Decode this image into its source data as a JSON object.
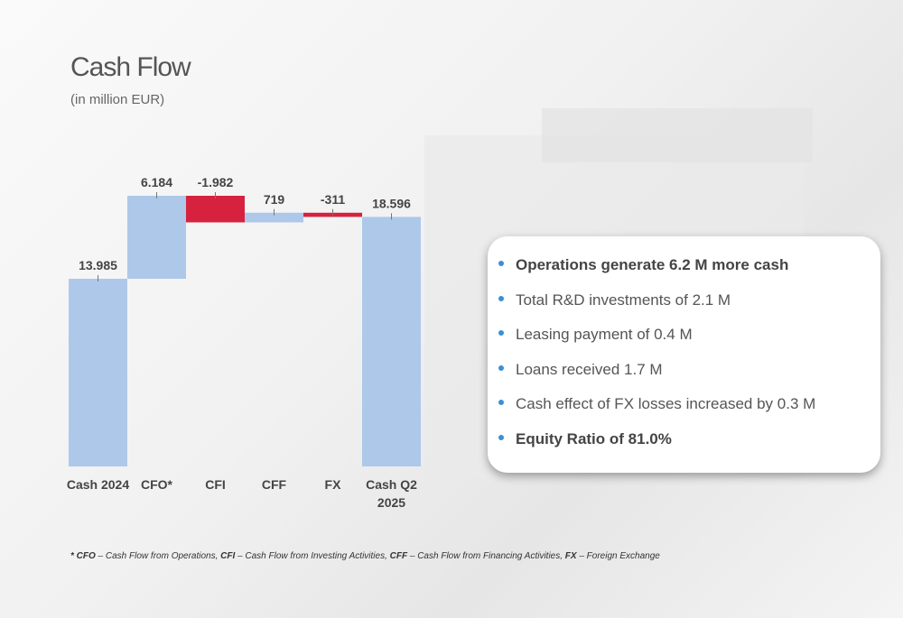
{
  "chart_data": {
    "type": "waterfall",
    "title": "Cash Flow",
    "subtitle": "(in million EUR)",
    "categories": [
      "Cash 2024",
      "CFO*",
      "CFI",
      "CFF",
      "FX",
      "Cash Q2 2025"
    ],
    "values": [
      13985,
      6184,
      -1982,
      719,
      -311,
      18596
    ],
    "value_labels": [
      "13.985",
      "6.184",
      "-1.982",
      "719",
      "-311",
      "18.596"
    ],
    "color": "#aec8ea",
    "negative_color": "#d6223f"
  },
  "notes": [
    {
      "text": "Operations generate 6.2 M more cash",
      "bold": true
    },
    {
      "text": "Total R&D investments of 2.1 M",
      "bold": false
    },
    {
      "text": "Leasing payment of 0.4 M",
      "bold": false
    },
    {
      "text": "Loans received 1.7 M",
      "bold": false
    },
    {
      "text": "Cash effect of FX losses increased by 0.3 M",
      "bold": false
    },
    {
      "text": "Equity Ratio of 81.0%",
      "bold": true
    }
  ],
  "footnote": [
    {
      "term": "* CFO",
      "text": " – Cash Flow from Operations, "
    },
    {
      "term": "CFI",
      "text": " – Cash Flow from Investing Activities, "
    },
    {
      "term": "CFF",
      "text": " – Cash Flow from Financing Activities, "
    },
    {
      "term": "FX",
      "text": " – Foreign Exchange"
    }
  ]
}
